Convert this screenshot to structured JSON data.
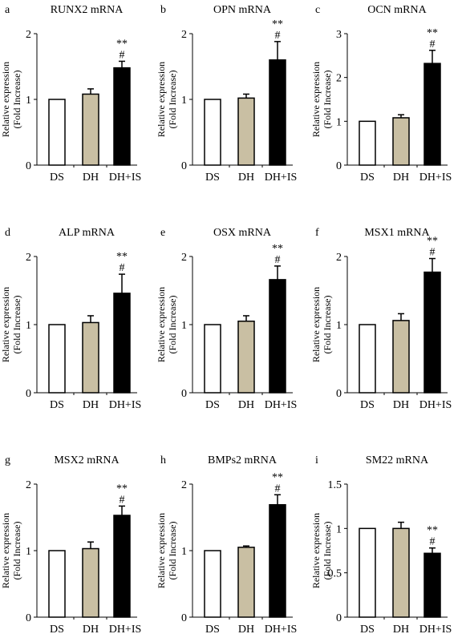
{
  "colors": {
    "ds": "#ffffff",
    "dh": "#c9bfa3",
    "dhis": "#000000",
    "axis": "#000000"
  },
  "chart_data": [
    {
      "type": "bar",
      "letter": "a",
      "title": "RUNX2 mRNA",
      "ylabel": "Relative expression",
      "ylabel2": "(Fold Increase)",
      "categories": [
        "DS",
        "DH",
        "DH+IS"
      ],
      "values": [
        1.0,
        1.08,
        1.48
      ],
      "errors": [
        0,
        0.08,
        0.1
      ],
      "ylim": [
        0,
        2
      ],
      "yticks": [
        "0",
        "1",
        "2"
      ],
      "annotations": [
        "",
        "",
        "**",
        "#"
      ]
    },
    {
      "type": "bar",
      "letter": "b",
      "title": "OPN mRNA",
      "ylabel": "Relative expression",
      "ylabel2": "(Fold Increase)",
      "categories": [
        "DS",
        "DH",
        "DH+IS"
      ],
      "values": [
        1.0,
        1.02,
        1.6
      ],
      "errors": [
        0,
        0.06,
        0.28
      ],
      "ylim": [
        0,
        2
      ],
      "yticks": [
        "0",
        "1",
        "2"
      ],
      "annotations": [
        "",
        "",
        "**",
        "#"
      ]
    },
    {
      "type": "bar",
      "letter": "c",
      "title": "OCN mRNA",
      "ylabel": "Relative expression",
      "ylabel2": "(Fold Increase)",
      "categories": [
        "DS",
        "DH",
        "DH+IS"
      ],
      "values": [
        1.0,
        1.08,
        2.32
      ],
      "errors": [
        0,
        0.07,
        0.3
      ],
      "ylim": [
        0,
        3
      ],
      "yticks": [
        "0",
        "1",
        "2",
        "3"
      ],
      "annotations": [
        "",
        "",
        "**",
        "#"
      ]
    },
    {
      "type": "bar",
      "letter": "d",
      "title": "ALP mRNA",
      "ylabel": "Relative expression",
      "ylabel2": "(Fold Increase)",
      "categories": [
        "DS",
        "DH",
        "DH+IS"
      ],
      "values": [
        1.0,
        1.03,
        1.46
      ],
      "errors": [
        0,
        0.1,
        0.28
      ],
      "ylim": [
        0,
        2
      ],
      "yticks": [
        "0",
        "1",
        "2"
      ],
      "annotations": [
        "",
        "",
        "**",
        "#"
      ]
    },
    {
      "type": "bar",
      "letter": "e",
      "title": "OSX mRNA",
      "ylabel": "Relative expression",
      "ylabel2": "(Fold Increase)",
      "categories": [
        "DS",
        "DH",
        "DH+IS"
      ],
      "values": [
        1.0,
        1.05,
        1.66
      ],
      "errors": [
        0,
        0.08,
        0.2
      ],
      "ylim": [
        0,
        2
      ],
      "yticks": [
        "0",
        "1",
        "2"
      ],
      "annotations": [
        "",
        "",
        "**",
        "#"
      ]
    },
    {
      "type": "bar",
      "letter": "f",
      "title": "MSX1 mRNA",
      "ylabel": "Relative expression",
      "ylabel2": "(Fold Increase)",
      "categories": [
        "DS",
        "DH",
        "DH+IS"
      ],
      "values": [
        1.0,
        1.06,
        1.77
      ],
      "errors": [
        0,
        0.1,
        0.2
      ],
      "ylim": [
        0,
        2
      ],
      "yticks": [
        "0",
        "1",
        "2"
      ],
      "annotations": [
        "",
        "",
        "**",
        "#"
      ]
    },
    {
      "type": "bar",
      "letter": "g",
      "title": "MSX2 mRNA",
      "ylabel": "Relative expression",
      "ylabel2": "(Fold Increase)",
      "categories": [
        "DS",
        "DH",
        "DH+IS"
      ],
      "values": [
        1.0,
        1.03,
        1.53
      ],
      "errors": [
        0,
        0.1,
        0.14
      ],
      "ylim": [
        0,
        2
      ],
      "yticks": [
        "0",
        "1",
        "2"
      ],
      "annotations": [
        "",
        "",
        "**",
        "#"
      ]
    },
    {
      "type": "bar",
      "letter": "h",
      "title": "BMPs2 mRNA",
      "ylabel": "Relative expression",
      "ylabel2": "(Fold Increase)",
      "categories": [
        "DS",
        "DH",
        "DH+IS"
      ],
      "values": [
        1.0,
        1.05,
        1.69
      ],
      "errors": [
        0,
        0.02,
        0.15
      ],
      "ylim": [
        0,
        2
      ],
      "yticks": [
        "0",
        "1",
        "2"
      ],
      "annotations": [
        "",
        "",
        "**",
        "#"
      ]
    },
    {
      "type": "bar",
      "letter": "i",
      "title": "SM22 mRNA",
      "ylabel": "Relative expression",
      "ylabel2": "(Fold Increase)",
      "categories": [
        "DS",
        "DH",
        "DH+IS"
      ],
      "values": [
        1.0,
        1.0,
        0.72
      ],
      "errors": [
        0,
        0.07,
        0.06
      ],
      "ylim": [
        0,
        1.5
      ],
      "yticks": [
        "0",
        "0.5",
        "1",
        "1.5"
      ],
      "annotations": [
        "",
        "",
        "**",
        "#"
      ]
    }
  ]
}
